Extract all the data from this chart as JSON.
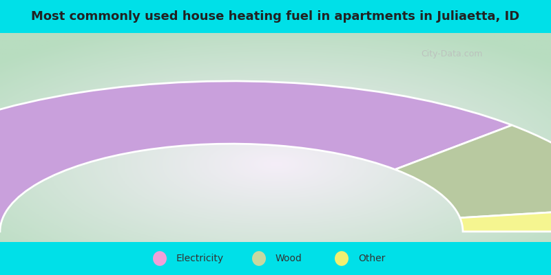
{
  "title": "Most commonly used house heating fuel in apartments in Juliaetta, ID",
  "slices": [
    {
      "label": "Electricity",
      "value": 75.0,
      "color": "#c9a0dc"
    },
    {
      "label": "Wood",
      "value": 20.0,
      "color": "#b8c9a0"
    },
    {
      "label": "Other",
      "value": 5.0,
      "color": "#f5f590"
    }
  ],
  "title_bg": "#00e0e8",
  "legend_bg": "#00e0e8",
  "main_bg_center": "#f5eef8",
  "main_bg_edge": "#b8ddc0",
  "title_fontsize": 13,
  "watermark": "City-Data.com",
  "legend_marker_colors": [
    "#f0a0d8",
    "#c8d8a0",
    "#f0f070"
  ]
}
